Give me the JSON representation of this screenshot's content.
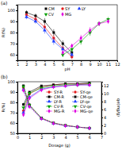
{
  "chart_data": [
    {
      "type": "line",
      "title": "(a)",
      "x_label": "pH",
      "y_label": "R(%)",
      "x": [
        2,
        3,
        4,
        5,
        6,
        7,
        8,
        9,
        10,
        11
      ],
      "xlim": [
        1,
        12
      ],
      "xticks": [
        1,
        2,
        3,
        4,
        5,
        6,
        7,
        8,
        9,
        10,
        11,
        12
      ],
      "ylim": [
        55,
        105
      ],
      "yticks": [
        60,
        70,
        80,
        90,
        100
      ],
      "grid": false,
      "legend": "top",
      "series": [
        {
          "name": "CM",
          "color": "#000000",
          "marker": "square",
          "line_style": "solid",
          "values": [
            98,
            95,
            90,
            80,
            70,
            62,
            null,
            null,
            null,
            null
          ],
          "errors": [
            2,
            2,
            3,
            3,
            3,
            2,
            null,
            null,
            null,
            null
          ]
        },
        {
          "name": "SY",
          "color": "#e41a1c",
          "marker": "circle",
          "line_style": "solid",
          "values": [
            96,
            92,
            85,
            75,
            66,
            58,
            null,
            null,
            null,
            null
          ],
          "errors": [
            2,
            3,
            3,
            3,
            2,
            2,
            null,
            null,
            null,
            null
          ]
        },
        {
          "name": "LY",
          "color": "#1f3fff",
          "marker": "triangle",
          "line_style": "solid",
          "values": [
            94,
            90,
            82,
            72,
            65,
            60,
            null,
            null,
            null,
            null
          ],
          "errors": [
            2,
            2,
            3,
            3,
            2,
            2,
            null,
            null,
            null,
            null
          ]
        },
        {
          "name": "CV",
          "color": "#00a000",
          "marker": "triangle-down",
          "line_style": "solid",
          "values": [
            null,
            null,
            null,
            null,
            60,
            65,
            72,
            80,
            88,
            92
          ],
          "errors": [
            null,
            null,
            null,
            null,
            2,
            3,
            3,
            3,
            2,
            2
          ]
        },
        {
          "name": "MG",
          "color": "#e000e0",
          "marker": "diamond",
          "line_style": "solid",
          "values": [
            null,
            null,
            null,
            null,
            62,
            68,
            75,
            82,
            88,
            90
          ],
          "errors": [
            null,
            null,
            null,
            null,
            2,
            2,
            3,
            3,
            2,
            2
          ]
        }
      ]
    },
    {
      "type": "line",
      "title": "(b)",
      "x_label": "Dosage (g)",
      "y_label": "R(%)",
      "y2_label": "qe(mg/g)",
      "x": [
        0.5,
        1,
        2,
        3,
        4,
        5,
        6
      ],
      "xlim": [
        0,
        7
      ],
      "xticks": [
        0,
        1,
        2,
        3,
        4,
        5,
        6,
        7
      ],
      "ylim": [
        50,
        100
      ],
      "yticks": [
        50,
        60,
        70,
        80,
        90,
        100
      ],
      "y2lim": [
        0,
        13
      ],
      "y2ticks": [
        0,
        2,
        4,
        6,
        8,
        10,
        12
      ],
      "grid": false,
      "legend": "right",
      "series": [
        {
          "name": "SY-R",
          "color": "#e41a1c",
          "marker": "circle",
          "line_style": "solid",
          "values": [
            72,
            88,
            95,
            97,
            98,
            98,
            98
          ]
        },
        {
          "name": "CM-R",
          "color": "#000000",
          "marker": "square",
          "line_style": "solid",
          "values": [
            78,
            90,
            96,
            97,
            98,
            98,
            99
          ]
        },
        {
          "name": "LY-R",
          "color": "#1f3fff",
          "marker": "triangle",
          "line_style": "solid",
          "values": [
            70,
            85,
            93,
            95,
            96,
            97,
            97
          ]
        },
        {
          "name": "CV-R",
          "color": "#00a000",
          "marker": "triangle-down",
          "line_style": "solid",
          "values": [
            75,
            89,
            94,
            96,
            97,
            97,
            98
          ]
        },
        {
          "name": "MG-R",
          "color": "#e000e0",
          "marker": "diamond",
          "line_style": "solid",
          "values": [
            68,
            84,
            92,
            95,
            96,
            97,
            97
          ]
        },
        {
          "name": "SY-qe",
          "color": "#e41a1c",
          "marker": "circle",
          "line_style": "dashed",
          "axis": "y2",
          "values": [
            11.5,
            7.0,
            3.8,
            2.6,
            2.0,
            1.6,
            1.3
          ]
        },
        {
          "name": "CM-qe",
          "color": "#000000",
          "marker": "square",
          "line_style": "dashed",
          "axis": "y2",
          "values": [
            12.0,
            7.2,
            3.9,
            2.6,
            2.0,
            1.6,
            1.3
          ]
        },
        {
          "name": "LY-qe",
          "color": "#1f3fff",
          "marker": "triangle",
          "line_style": "dashed",
          "axis": "y2",
          "values": [
            11.0,
            6.8,
            3.7,
            2.5,
            1.9,
            1.6,
            1.3
          ]
        },
        {
          "name": "CV-qe",
          "color": "#00a000",
          "marker": "triangle-down",
          "line_style": "dashed",
          "axis": "y2",
          "values": [
            11.8,
            7.1,
            3.8,
            2.6,
            2.0,
            1.6,
            1.3
          ]
        },
        {
          "name": "MG-qe",
          "color": "#e000e0",
          "marker": "diamond",
          "line_style": "dashed",
          "axis": "y2",
          "values": [
            10.8,
            6.7,
            3.7,
            2.5,
            1.9,
            1.6,
            1.3
          ]
        }
      ]
    }
  ]
}
